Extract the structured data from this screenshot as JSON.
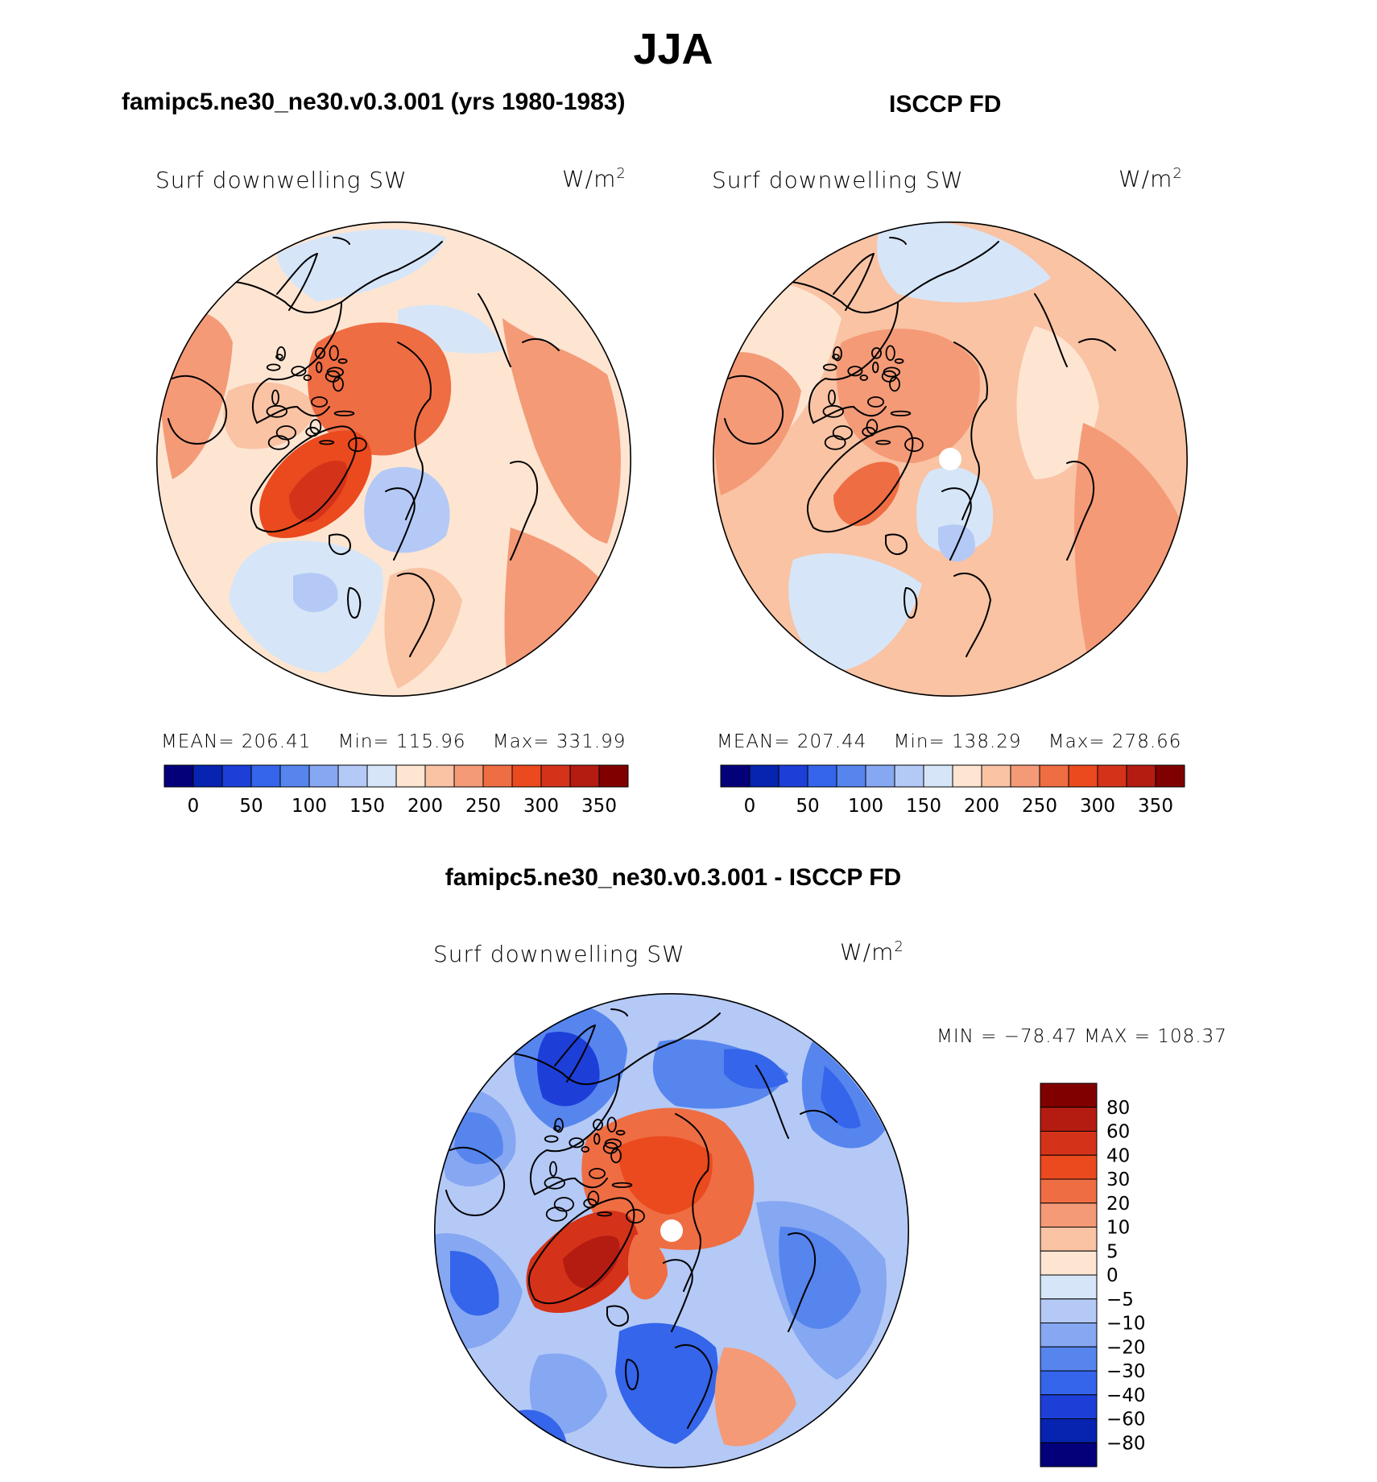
{
  "page": {
    "title": "JJA"
  },
  "colors": {
    "seq": [
      "#04007a",
      "#0624b0",
      "#1d3fd8",
      "#3465ea",
      "#5685ee",
      "#86a7f2",
      "#b4c9f6",
      "#d6e6f8",
      "#fde5d2",
      "#f9c3a4",
      "#f49a77",
      "#ef6d43",
      "#ea4a1e",
      "#d5321a",
      "#b41c11",
      "#800000"
    ],
    "div": [
      "#04007a",
      "#0624b0",
      "#1d3fd8",
      "#3465ea",
      "#5685ee",
      "#86a7f2",
      "#b4c9f6",
      "#d6e6f8",
      "#fde5d2",
      "#f9c3a4",
      "#f49a77",
      "#ef6d43",
      "#ea4a1e",
      "#d5321a",
      "#b41c11",
      "#800000"
    ],
    "coast": "#000000"
  },
  "chart_data": [
    {
      "type": "heatmap",
      "projection": "polar stereographic (north pole)",
      "title": "famipc5.ne30_ne30.v0.3.001 (yrs 1980-1983)",
      "variable": "Surf  downwelling  SW",
      "units": "W/m",
      "units_sup": "2",
      "stats": {
        "mean_label": "MEAN=",
        "mean": "206.41",
        "min_label": "Min=",
        "min": "115.96",
        "max_label": "Max=",
        "max": "331.99"
      },
      "colorbar": {
        "orientation": "horizontal",
        "labels": [
          "0",
          "50",
          "100",
          "150",
          "200",
          "250",
          "300",
          "350"
        ],
        "levels": [
          0,
          25,
          50,
          75,
          100,
          125,
          150,
          175,
          200,
          225,
          250,
          275,
          300,
          325,
          350
        ]
      }
    },
    {
      "type": "heatmap",
      "projection": "polar stereographic (north pole)",
      "title": "ISCCP FD",
      "variable": "Surf  downwelling  SW",
      "units": "W/m",
      "units_sup": "2",
      "stats": {
        "mean_label": "MEAN=",
        "mean": "207.44",
        "min_label": "Min=",
        "min": "138.29",
        "max_label": "Max=",
        "max": "278.66"
      },
      "colorbar": {
        "orientation": "horizontal",
        "labels": [
          "0",
          "50",
          "100",
          "150",
          "200",
          "250",
          "300",
          "350"
        ],
        "levels": [
          0,
          25,
          50,
          75,
          100,
          125,
          150,
          175,
          200,
          225,
          250,
          275,
          300,
          325,
          350
        ]
      }
    },
    {
      "type": "heatmap",
      "projection": "polar stereographic (north pole)",
      "title": "famipc5.ne30_ne30.v0.3.001 - ISCCP FD",
      "variable": "Surf  downwelling  SW",
      "units": "W/m",
      "units_sup": "2",
      "stats": {
        "text": "MIN  =  −78.47  MAX  =  108.37"
      },
      "colorbar": {
        "orientation": "vertical",
        "labels": [
          "80",
          "60",
          "40",
          "30",
          "20",
          "10",
          "5",
          "0",
          "−5",
          "−10",
          "−20",
          "−30",
          "−40",
          "−60",
          "−80"
        ]
      }
    }
  ]
}
